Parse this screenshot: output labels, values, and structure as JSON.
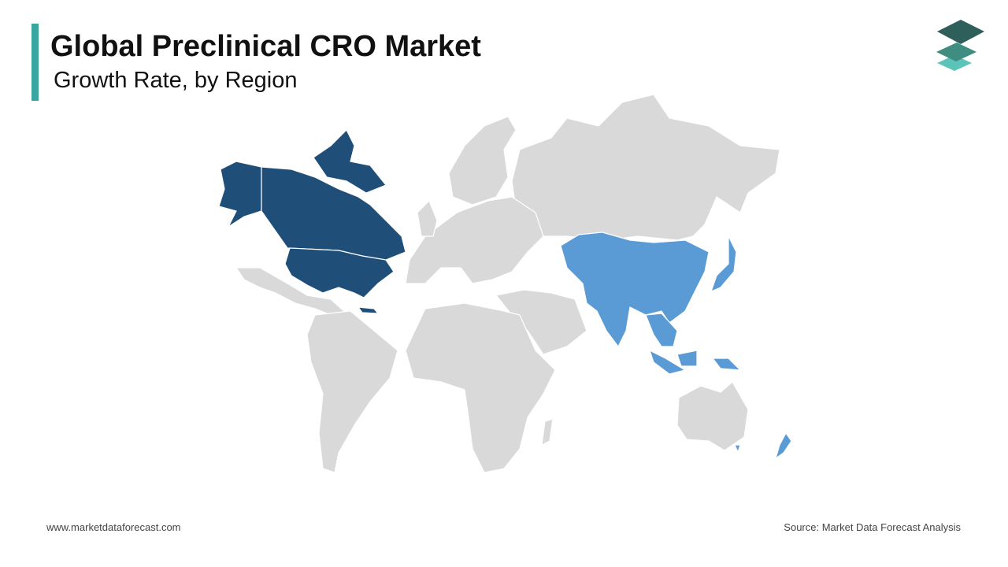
{
  "header": {
    "title": "Global Preclinical CRO Market",
    "subtitle": "Growth Rate, by Region"
  },
  "footer": {
    "website": "www.marketdataforecast.com",
    "source": "Source: Market Data Forecast Analysis"
  }
}
